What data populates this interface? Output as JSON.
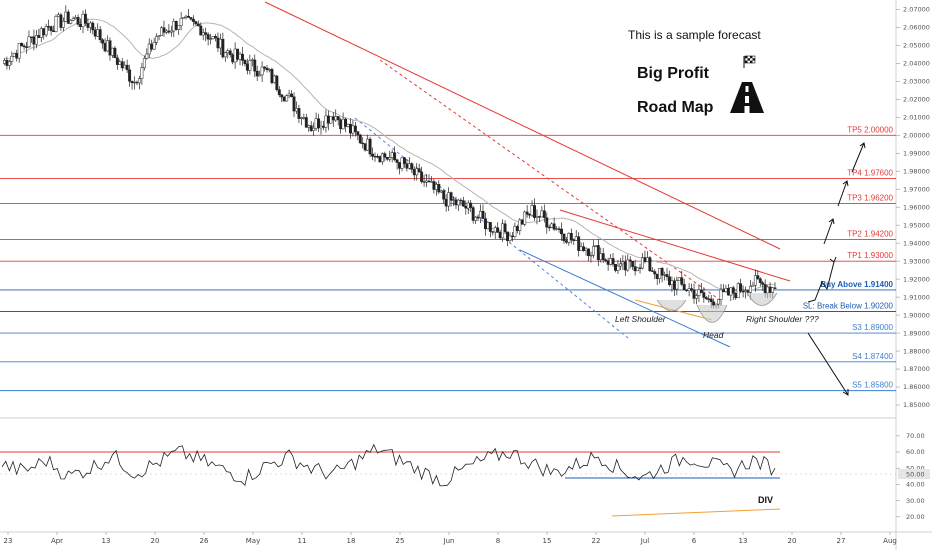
{
  "chart_data": [
    {
      "type": "candlestick",
      "y_axis_ticks": [
        "2.07000",
        "2.06000",
        "2.05000",
        "2.04000",
        "2.03000",
        "2.02000",
        "2.01000",
        "2.00000",
        "1.99000",
        "1.98000",
        "1.97000",
        "1.96000",
        "1.95000",
        "1.94000",
        "1.93000",
        "1.92000",
        "1.91000",
        "1.90000",
        "1.89000",
        "1.88000",
        "1.87000",
        "1.86000",
        "1.85000"
      ],
      "ylim": [
        1.845,
        2.073
      ],
      "x_ticks": [
        "23",
        "Apr",
        "13",
        "20",
        "26",
        "May",
        "11",
        "18",
        "25",
        "Jun",
        "8",
        "15",
        "22",
        "Jul",
        "6",
        "13",
        "20",
        "27",
        "Aug"
      ],
      "series_close_approx": [
        2.04,
        2.05,
        2.06,
        2.065,
        2.062,
        2.045,
        2.03,
        2.055,
        2.063,
        2.06,
        2.048,
        2.04,
        2.035,
        2.02,
        2.005,
        2.012,
        2.0,
        1.99,
        1.985,
        1.975,
        1.965,
        1.96,
        1.95,
        1.945,
        1.958,
        1.95,
        1.94,
        1.935,
        1.925,
        1.93,
        1.92,
        1.915,
        1.908,
        1.912,
        1.918,
        1.915
      ],
      "levels": [
        {
          "label": "TP5 2.00000",
          "value": 2.0,
          "color": "#e53935"
        },
        {
          "label": "TP4 1.97600",
          "value": 1.976,
          "color": "#e53935"
        },
        {
          "label": "TP3 1.96200",
          "value": 1.962,
          "color": "#e53935"
        },
        {
          "label": "TP2 1.94200",
          "value": 1.942,
          "color": "#e53935"
        },
        {
          "label": "TP1 1.93000",
          "value": 1.93,
          "color": "#e53935"
        },
        {
          "label": "Buy Above 1.91400",
          "value": 1.914,
          "color": "#1e5bb8"
        },
        {
          "label": "SL: Break Below 1.90200",
          "value": 1.902,
          "color": "#1e5bb8"
        },
        {
          "label": "S3 1.89000",
          "value": 1.89,
          "color": "#3d7fd0"
        },
        {
          "label": "S4 1.87400",
          "value": 1.874,
          "color": "#3d7fd0"
        },
        {
          "label": "S5 1.85800",
          "value": 1.858,
          "color": "#3d7fd0"
        }
      ],
      "annotations": [
        "Left Shoulder",
        "Head",
        "Right Shoulder ???"
      ],
      "colors": {
        "up": "#ffffff",
        "down": "#222222",
        "resistance": "#e53935",
        "support": "#3d7fd0"
      }
    },
    {
      "type": "line",
      "y_axis_ticks": [
        "70.00",
        "60.00",
        "50.00",
        "40.00",
        "30.00",
        "20.00"
      ],
      "ylim": [
        18,
        73
      ],
      "current_value_label": "50.00",
      "values": [
        52,
        48,
        55,
        45,
        50,
        58,
        47,
        53,
        60,
        55,
        49,
        44,
        52,
        57,
        50,
        46,
        54,
        62,
        55,
        48,
        42,
        50,
        56,
        60,
        53,
        47,
        52,
        58,
        49,
        44,
        51,
        57,
        53,
        48,
        55,
        50
      ],
      "annotation": "DIV",
      "colors": {
        "line": "#222222",
        "upper": "#e53935",
        "mid": "#1e5bb8",
        "div": "#f0a030"
      }
    }
  ],
  "promo": {
    "sample": "This is a sample forecast",
    "line1": "Big Profit",
    "line2": "Road Map"
  }
}
